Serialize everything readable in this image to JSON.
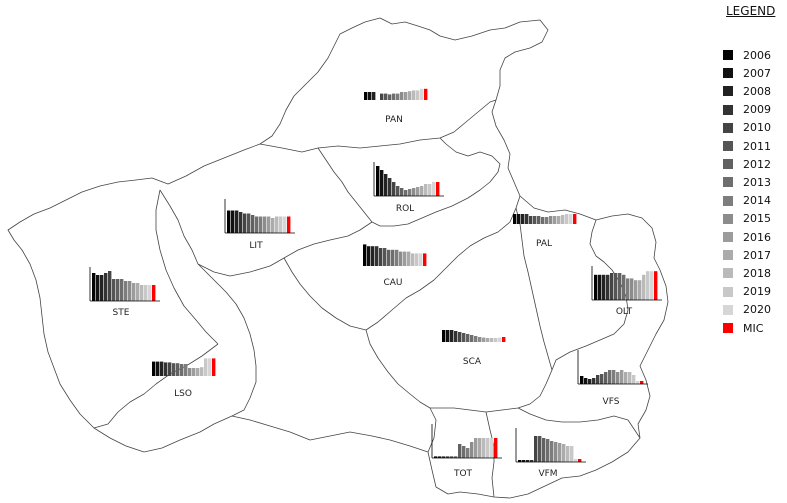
{
  "legend": {
    "title": "LEGEND",
    "items": [
      {
        "label": "2006",
        "color": "#000000"
      },
      {
        "label": "2007",
        "color": "#111111"
      },
      {
        "label": "2008",
        "color": "#222222"
      },
      {
        "label": "2009",
        "color": "#333333"
      },
      {
        "label": "2010",
        "color": "#444444"
      },
      {
        "label": "2011",
        "color": "#555555"
      },
      {
        "label": "2012",
        "color": "#616161"
      },
      {
        "label": "2013",
        "color": "#6e6e6e"
      },
      {
        "label": "2014",
        "color": "#7d7d7d"
      },
      {
        "label": "2015",
        "color": "#8c8c8c"
      },
      {
        "label": "2016",
        "color": "#9c9c9c"
      },
      {
        "label": "2017",
        "color": "#ababab"
      },
      {
        "label": "2018",
        "color": "#bababa"
      },
      {
        "label": "2019",
        "color": "#c8c8c8"
      },
      {
        "label": "2020",
        "color": "#d6d6d6"
      },
      {
        "label": "MIC",
        "color": "#ff0000"
      }
    ]
  },
  "districts": [
    {
      "code": "PAN",
      "values": [
        5,
        5,
        5,
        0,
        4,
        4,
        3.5,
        4,
        4,
        5,
        5,
        5.5,
        6,
        6,
        7,
        7
      ]
    },
    {
      "code": "ROL",
      "values": [
        15,
        13,
        11,
        9,
        7,
        5,
        4,
        3,
        3.5,
        4,
        4.5,
        5,
        6,
        6,
        7,
        7
      ]
    },
    {
      "code": "LIT",
      "values": [
        15,
        15,
        15,
        14,
        13,
        13,
        12,
        11,
        11,
        11,
        11,
        10,
        11,
        11,
        11,
        11
      ]
    },
    {
      "code": "PAL",
      "values": [
        5,
        5,
        5,
        5,
        4,
        4,
        4,
        3.5,
        3.5,
        4,
        4,
        4,
        4.5,
        5,
        5,
        5
      ]
    },
    {
      "code": "CAU",
      "values": [
        12,
        11,
        11,
        11,
        10,
        10,
        9,
        9,
        9,
        8,
        8,
        8,
        7,
        7,
        7,
        7
      ]
    },
    {
      "code": "STE",
      "values": [
        14,
        13,
        13,
        14,
        15,
        11,
        11,
        11,
        10,
        10,
        9,
        9,
        8,
        8,
        8,
        8
      ]
    },
    {
      "code": "OLT",
      "values": [
        14,
        14,
        14,
        14,
        15,
        15,
        15,
        14,
        12,
        12,
        11,
        11,
        14,
        16,
        16,
        16
      ]
    },
    {
      "code": "SCA",
      "values": [
        6,
        6,
        6,
        5.5,
        5,
        4.5,
        4,
        3.5,
        3,
        2.5,
        2.2,
        2,
        2,
        2,
        2.2,
        2.5
      ]
    },
    {
      "code": "LSO",
      "values": [
        9,
        9,
        9,
        8.5,
        8.5,
        8,
        8,
        7.5,
        7.5,
        5,
        5,
        5,
        5.5,
        11,
        11,
        11
      ]
    },
    {
      "code": "VFS",
      "values": [
        4,
        3,
        2.5,
        3,
        4.5,
        5,
        6,
        7,
        7,
        6,
        7,
        6,
        6,
        4.5,
        1.5,
        1.5
      ]
    },
    {
      "code": "TOT",
      "values": [
        0.8,
        0.8,
        0.8,
        0.8,
        0.8,
        0.8,
        7,
        6,
        5,
        8,
        10,
        10,
        10,
        10,
        10,
        10
      ]
    },
    {
      "code": "VFM",
      "values": [
        1,
        1,
        1,
        1,
        13,
        13,
        12,
        11.5,
        10.5,
        10,
        9.5,
        9,
        8,
        8,
        1.5,
        1.5
      ]
    }
  ]
}
